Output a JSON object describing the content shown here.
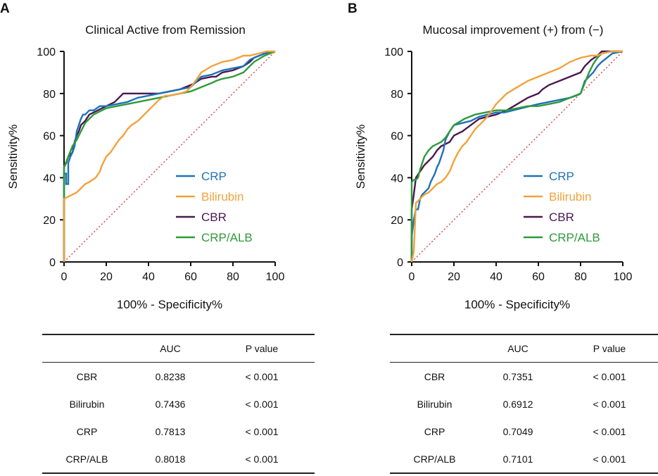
{
  "legend_colors": {
    "CRP": "#1f72b8",
    "Bilirubin": "#f2a23a",
    "CBR": "#4a1850",
    "CRP/ALB": "#2f9a3a"
  },
  "chart_data": [
    {
      "panel_label": "A",
      "type": "line",
      "title": "Clinical Active from Remission",
      "xlabel": "100% - Specificity%",
      "ylabel": "Sensitivity%",
      "xlim": [
        0,
        100
      ],
      "ylim": [
        0,
        100
      ],
      "xticks": [
        "0",
        "20",
        "40",
        "60",
        "80",
        "100"
      ],
      "yticks": [
        "0",
        "20",
        "40",
        "60",
        "80",
        "100"
      ],
      "reference_line": {
        "x": [
          0,
          100
        ],
        "y": [
          0,
          100
        ],
        "style": "dotted",
        "color": "#e03030"
      },
      "legend": [
        "CRP",
        "Bilirubin",
        "CBR",
        "CRP/ALB"
      ],
      "series": [
        {
          "name": "CRP",
          "x": [
            0,
            0,
            1,
            1,
            2,
            2,
            3,
            4,
            5,
            6,
            7,
            8,
            9,
            10,
            12,
            14,
            17,
            20,
            25,
            30,
            35,
            40,
            45,
            50,
            55,
            60,
            65,
            70,
            75,
            80,
            85,
            88,
            90,
            95,
            100
          ],
          "y": [
            0,
            42,
            42,
            37,
            37,
            47,
            50,
            52,
            55,
            62,
            65,
            68,
            70,
            70,
            72,
            72,
            74,
            74,
            75,
            76,
            78,
            79,
            80,
            81,
            82,
            83,
            88,
            89,
            91,
            92,
            93,
            96,
            97,
            99,
            100
          ]
        },
        {
          "name": "Bilirubin",
          "x": [
            0,
            0,
            2,
            4,
            6,
            8,
            10,
            12,
            15,
            17,
            18,
            20,
            22,
            24,
            26,
            28,
            30,
            32,
            35,
            38,
            40,
            42,
            45,
            48,
            50,
            55,
            58,
            60,
            63,
            65,
            70,
            75,
            80,
            85,
            88,
            92,
            96,
            100
          ],
          "y": [
            0,
            30,
            31,
            32,
            33,
            35,
            37,
            38,
            40,
            43,
            46,
            50,
            52,
            55,
            58,
            60,
            63,
            65,
            67,
            70,
            72,
            74,
            77,
            79,
            79,
            80,
            81,
            83,
            87,
            90,
            93,
            95,
            96,
            98,
            98,
            99,
            100,
            100
          ]
        },
        {
          "name": "CBR",
          "x": [
            0,
            0,
            1,
            2,
            3,
            4,
            5,
            6,
            7,
            8,
            10,
            12,
            14,
            16,
            18,
            20,
            22,
            24,
            26,
            28,
            30,
            35,
            40,
            45,
            50,
            55,
            60,
            62,
            65,
            70,
            72,
            75,
            80,
            85,
            88,
            90,
            95,
            100
          ],
          "y": [
            0,
            45,
            47,
            50,
            51,
            52,
            57,
            60,
            62,
            65,
            67,
            70,
            71,
            72,
            73,
            74,
            75,
            76,
            78,
            80,
            80,
            80,
            80,
            80,
            81,
            82,
            84,
            85,
            87,
            88,
            88,
            90,
            91,
            93,
            95,
            97,
            99,
            100
          ]
        },
        {
          "name": "CRP/ALB",
          "x": [
            0,
            0,
            2,
            4,
            6,
            8,
            10,
            12,
            14,
            16,
            18,
            20,
            25,
            30,
            35,
            40,
            45,
            50,
            55,
            60,
            65,
            70,
            72,
            75,
            80,
            85,
            90,
            95,
            100
          ],
          "y": [
            0,
            45,
            50,
            55,
            58,
            62,
            66,
            68,
            70,
            71,
            72,
            73,
            74,
            75,
            76,
            77,
            78,
            79,
            80,
            81,
            83,
            85,
            86,
            87,
            88,
            90,
            95,
            98,
            100
          ]
        }
      ]
    },
    {
      "panel_label": "B",
      "type": "line",
      "title": "Mucosal improvement (+) from (−)",
      "xlabel": "100% - Specificity%",
      "ylabel": "Sensitivity%",
      "xlim": [
        0,
        100
      ],
      "ylim": [
        0,
        100
      ],
      "xticks": [
        "0",
        "20",
        "40",
        "60",
        "80",
        "100"
      ],
      "yticks": [
        "0",
        "20",
        "40",
        "60",
        "80",
        "100"
      ],
      "reference_line": {
        "x": [
          0,
          100
        ],
        "y": [
          0,
          100
        ],
        "style": "dotted",
        "color": "#e03030"
      },
      "legend": [
        "CRP",
        "Bilirubin",
        "CBR",
        "CRP/ALB"
      ],
      "series": [
        {
          "name": "CRP",
          "x": [
            0,
            0,
            1,
            2,
            3,
            4,
            5,
            6,
            8,
            9,
            10,
            11,
            12,
            13,
            14,
            15,
            16,
            18,
            20,
            24,
            28,
            32,
            36,
            40,
            44,
            48,
            52,
            56,
            60,
            65,
            70,
            75,
            78,
            80,
            82,
            84,
            86,
            88,
            90,
            95,
            100
          ],
          "y": [
            0,
            12,
            20,
            25,
            25,
            30,
            32,
            33,
            35,
            38,
            40,
            42,
            45,
            47,
            50,
            53,
            58,
            62,
            65,
            66,
            67,
            69,
            70,
            71,
            71,
            72,
            73,
            74,
            75,
            76,
            77,
            78,
            79,
            80,
            86,
            88,
            90,
            93,
            95,
            99,
            100
          ]
        },
        {
          "name": "Bilirubin",
          "x": [
            0,
            0,
            1,
            2,
            4,
            6,
            8,
            10,
            12,
            14,
            16,
            18,
            20,
            22,
            24,
            26,
            28,
            30,
            32,
            35,
            38,
            40,
            45,
            50,
            55,
            60,
            65,
            70,
            75,
            80,
            85,
            88,
            90,
            95,
            100
          ],
          "y": [
            0,
            0,
            5,
            28,
            30,
            32,
            33,
            35,
            37,
            38,
            40,
            43,
            48,
            52,
            55,
            57,
            60,
            63,
            65,
            68,
            72,
            75,
            80,
            83,
            86,
            88,
            90,
            92,
            95,
            97,
            98,
            98,
            99,
            100,
            100
          ]
        },
        {
          "name": "CBR",
          "x": [
            0,
            0,
            1,
            2,
            4,
            6,
            8,
            10,
            12,
            14,
            16,
            18,
            20,
            24,
            28,
            32,
            36,
            40,
            45,
            50,
            55,
            60,
            62,
            65,
            70,
            75,
            80,
            82,
            85,
            88,
            90,
            95,
            100
          ],
          "y": [
            0,
            25,
            32,
            40,
            43,
            46,
            48,
            50,
            53,
            55,
            56,
            57,
            60,
            62,
            65,
            68,
            69,
            70,
            72,
            75,
            78,
            80,
            82,
            84,
            86,
            88,
            90,
            93,
            96,
            98,
            100,
            100,
            100
          ]
        },
        {
          "name": "CRP/ALB",
          "x": [
            0,
            0,
            1,
            2,
            3,
            4,
            6,
            8,
            10,
            12,
            14,
            16,
            18,
            20,
            25,
            30,
            35,
            40,
            45,
            50,
            55,
            60,
            65,
            70,
            75,
            80,
            82,
            84,
            86,
            88,
            90,
            95,
            100
          ],
          "y": [
            0,
            38,
            39,
            39,
            40,
            44,
            50,
            53,
            55,
            56,
            57,
            59,
            62,
            65,
            68,
            70,
            71,
            72,
            72,
            73,
            74,
            74,
            75,
            76,
            78,
            80,
            85,
            90,
            94,
            97,
            99,
            100,
            100
          ]
        }
      ]
    }
  ],
  "tables": [
    {
      "headers": [
        "",
        "AUC",
        "P value"
      ],
      "rows": [
        {
          "name": "CBR",
          "auc": "0.8238",
          "p": "< 0.001"
        },
        {
          "name": "Bilirubin",
          "auc": "0.7436",
          "p": "< 0.001"
        },
        {
          "name": "CRP",
          "auc": "0.7813",
          "p": "< 0.001"
        },
        {
          "name": "CRP/ALB",
          "auc": "0.8018",
          "p": "< 0.001"
        }
      ]
    },
    {
      "headers": [
        "",
        "AUC",
        "P value"
      ],
      "rows": [
        {
          "name": "CBR",
          "auc": "0.7351",
          "p": "< 0.001"
        },
        {
          "name": "Bilirubin",
          "auc": "0.6912",
          "p": "< 0.001"
        },
        {
          "name": "CRP",
          "auc": "0.7049",
          "p": "< 0.001"
        },
        {
          "name": "CRP/ALB",
          "auc": "0.7101",
          "p": "< 0.001"
        }
      ]
    }
  ]
}
